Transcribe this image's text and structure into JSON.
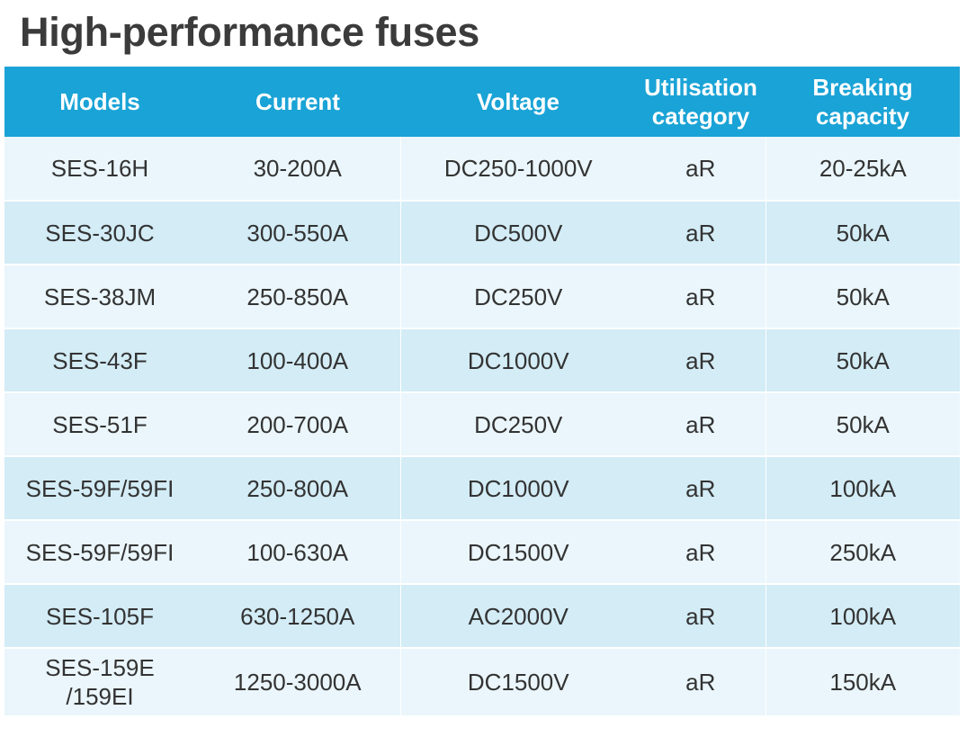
{
  "title": "High-performance fuses",
  "colors": {
    "header_bg": "#1aa3d6",
    "row_light": "#eaf6fb",
    "row_dark": "#d3ecf6",
    "title_text": "#3b3b3b",
    "cell_text": "#333333"
  },
  "table": {
    "headers": [
      "Models",
      "Current",
      "Voltage",
      "Utilisation\ncategory",
      "Breaking\ncapacity"
    ],
    "rows": [
      [
        "SES-16H",
        "30-200A",
        "DC250-1000V",
        "aR",
        "20-25kA"
      ],
      [
        "SES-30JC",
        "300-550A",
        "DC500V",
        "aR",
        "50kA"
      ],
      [
        "SES-38JM",
        "250-850A",
        "DC250V",
        "aR",
        "50kA"
      ],
      [
        "SES-43F",
        "100-400A",
        "DC1000V",
        "aR",
        "50kA"
      ],
      [
        "SES-51F",
        "200-700A",
        "DC250V",
        "aR",
        "50kA"
      ],
      [
        "SES-59F/59FI",
        "250-800A",
        "DC1000V",
        "aR",
        "100kA"
      ],
      [
        "SES-59F/59FI",
        "100-630A",
        "DC1500V",
        "aR",
        "250kA"
      ],
      [
        "SES-105F",
        "630-1250A",
        "AC2000V",
        "aR",
        "100kA"
      ],
      [
        "SES-159E\n/159EI",
        "1250-3000A",
        "DC1500V",
        "aR",
        "150kA"
      ]
    ]
  }
}
